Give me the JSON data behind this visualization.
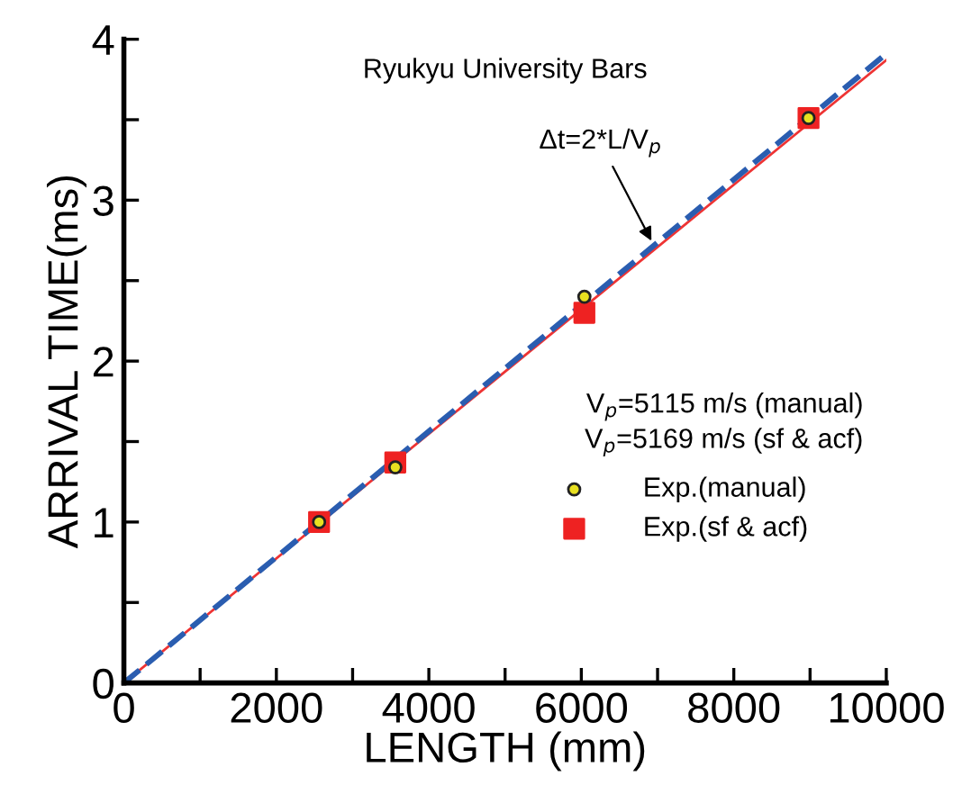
{
  "chart_data": {
    "type": "scatter",
    "title": "Ryukyu University Bars",
    "xlabel": "LENGTH (mm)",
    "ylabel": "ARRIVAL TIME(ms)",
    "xlim": [
      0,
      10000
    ],
    "ylim": [
      0,
      4
    ],
    "xticks": [
      0,
      {
        "value": 1000,
        "label": null
      },
      2000,
      {
        "value": 3000,
        "label": null
      },
      4000,
      {
        "value": 5000,
        "label": null
      },
      6000,
      {
        "value": 7000,
        "label": null
      },
      8000,
      {
        "value": 9000,
        "label": null
      },
      10000
    ],
    "yticks": [
      0,
      {
        "value": 0.5,
        "label": null
      },
      1,
      {
        "value": 1.5,
        "label": null
      },
      2,
      {
        "value": 2.5,
        "label": null
      },
      3,
      {
        "value": 3.5,
        "label": null
      },
      4
    ],
    "series": [
      {
        "type": "line",
        "color": "#ee3333",
        "line_style": "solid",
        "marker": "none",
        "x": [
          0,
          10000
        ],
        "values": [
          0,
          3.87
        ]
      },
      {
        "type": "line",
        "color": "#2a5db0",
        "line_style": "dashed",
        "marker": "none",
        "x": [
          0,
          10000
        ],
        "values": [
          0,
          3.91
        ]
      },
      {
        "name": "Exp.(manual)",
        "color": "#e8e020",
        "marker": "circle",
        "x": [
          2560,
          3560,
          6040,
          8980
        ],
        "values": [
          1.0,
          1.34,
          2.4,
          3.51
        ]
      },
      {
        "name": "Exp.(sf & acf)",
        "color": "#ee2222",
        "marker": "square",
        "x": [
          2560,
          3560,
          6040,
          8980
        ],
        "values": [
          1.0,
          1.37,
          2.3,
          3.51
        ]
      }
    ],
    "annotations": [
      {
        "text": "Δt=2*L/V$_{p}$",
        "x": 6950,
        "y": 2.72
      },
      "V$_{p}$=5115 m/s (manual)",
      "V$_{p}$=5169 m/s (sf & acf)"
    ],
    "legend": "right",
    "grid": false
  }
}
